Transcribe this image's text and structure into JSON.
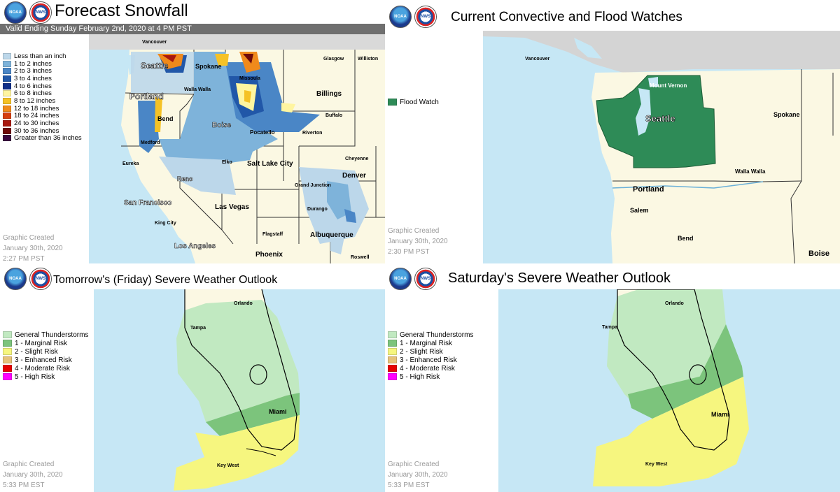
{
  "panels": {
    "snowfall": {
      "title": "Forecast Snowfall",
      "valid_text": "Valid Ending Sunday February 2nd, 2020 at 4 PM PST",
      "legend": [
        {
          "label": "Less than an inch",
          "color": "#bcd7ea"
        },
        {
          "label": "1 to 2 inches",
          "color": "#7eb3da"
        },
        {
          "label": "2 to 3 inches",
          "color": "#4a86c6"
        },
        {
          "label": "3 to 4 inches",
          "color": "#2157a8"
        },
        {
          "label": "4 to 6 inches",
          "color": "#0f2f8a"
        },
        {
          "label": "6 to 8 inches",
          "color": "#fff5a0"
        },
        {
          "label": "8 to 12 inches",
          "color": "#f5c226"
        },
        {
          "label": "12 to 18 inches",
          "color": "#f08a1c"
        },
        {
          "label": "18 to 24 inches",
          "color": "#d53e10"
        },
        {
          "label": "24 to 30 inches",
          "color": "#a8180e"
        },
        {
          "label": "30 to 36 inches",
          "color": "#6e0a0a"
        },
        {
          "label": "Greater than 36 inches",
          "color": "#3a0840"
        }
      ],
      "created": {
        "line1": "Graphic Created",
        "line2": "January 30th, 2020",
        "line3": "2:27 PM PST"
      },
      "cities": [
        "Vancouver",
        "Glasgow",
        "Williston",
        "Seattle",
        "Spokane",
        "Missoula",
        "Portland",
        "Walla Walla",
        "Billings",
        "Bend",
        "Boise",
        "Buffalo",
        "Pocatello",
        "Medford",
        "Riverton",
        "Eureka",
        "Elko",
        "Salt Lake City",
        "Cheyenne",
        "Denver",
        "Reno",
        "Grand Junction",
        "San Francisco",
        "Las Vegas",
        "Durango",
        "King City",
        "Flagstaff",
        "Albuquerque",
        "Los Angeles",
        "Phoenix",
        "Roswell"
      ]
    },
    "watches": {
      "title": "Current Convective and Flood Watches",
      "legend": [
        {
          "label": "Flood Watch",
          "color": "#2e8b57"
        }
      ],
      "created": {
        "line1": "Graphic Created",
        "line2": "January 30th, 2020",
        "line3": "2:30 PM PST"
      },
      "cities": [
        "Vancouver",
        "Mount Vernon",
        "Seattle",
        "Spokane",
        "Walla Walla",
        "Portland",
        "Salem",
        "Bend",
        "Boise"
      ]
    },
    "friday": {
      "title": "Tomorrow's (Friday) Severe Weather Outlook",
      "legend": [
        {
          "label": "General Thunderstorms",
          "color": "#c1e9c1"
        },
        {
          "label": "1 - Marginal Risk",
          "color": "#7cc47c"
        },
        {
          "label": "2 - Slight Risk",
          "color": "#f6f67f"
        },
        {
          "label": "3 - Enhanced Risk",
          "color": "#e6c27a"
        },
        {
          "label": "4 - Moderate Risk",
          "color": "#e60000"
        },
        {
          "label": "5 - High Risk",
          "color": "#ff00ff"
        }
      ],
      "created": {
        "line1": "Graphic Created",
        "line2": "January 30th, 2020",
        "line3": "5:33 PM EST"
      },
      "cities": [
        "Orlando",
        "Tampa",
        "Miami",
        "Key West"
      ]
    },
    "saturday": {
      "title": "Saturday's Severe Weather Outlook",
      "legend": [
        {
          "label": "General Thunderstorms",
          "color": "#c1e9c1"
        },
        {
          "label": "1 - Marginal Risk",
          "color": "#7cc47c"
        },
        {
          "label": "2 - Slight Risk",
          "color": "#f6f67f"
        },
        {
          "label": "3 - Enhanced Risk",
          "color": "#e6c27a"
        },
        {
          "label": "4 - Moderate Risk",
          "color": "#e60000"
        },
        {
          "label": "5 - High Risk",
          "color": "#ff00ff"
        }
      ],
      "created": {
        "line1": "Graphic Created",
        "line2": "January 30th, 2020",
        "line3": "5:33 PM EST"
      },
      "cities": [
        "Orlando",
        "Tampa",
        "Miami",
        "Key West"
      ]
    }
  },
  "logos": {
    "noaa": "NOAA",
    "nws": "NWS"
  },
  "colors": {
    "land": "#fbf8e3",
    "water": "#c6e7f5",
    "canada": "#d4d4d4",
    "flood": "#2e8b57"
  }
}
